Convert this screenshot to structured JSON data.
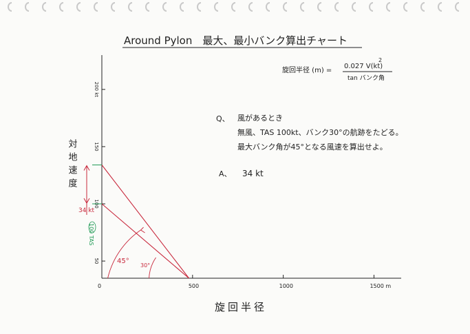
{
  "title": "Around Pylon　最大、最小バンク算出チャート",
  "formula": {
    "lhs": "旋回半径 (m) =",
    "numerator": "0.027 V(kt)",
    "exponent": "2",
    "denominator": "tan バンク角"
  },
  "question": {
    "label": "Q、",
    "lines": [
      "風があるとき",
      "無風、TAS 100kt、バンク30°の航跡をたどる。",
      "最大バンク角が45°となる風速を算出せよ。"
    ]
  },
  "answer": {
    "label": "A、",
    "value": "34 kt"
  },
  "colors": {
    "ink": "#222222",
    "red": "#c8283c",
    "green": "#1f9a55",
    "binder": "#c9c9c9"
  },
  "chart_data": {
    "type": "line",
    "title": "Around Pylon　最大、最小バンク算出チャート",
    "xlabel": "旋回半径",
    "ylabel": "対地速度",
    "xlim": [
      0,
      1650
    ],
    "ylim": [
      35,
      230
    ],
    "x_ticks": [
      {
        "value": 0,
        "label": "0"
      },
      {
        "value": 500,
        "label": "500"
      },
      {
        "value": 1000,
        "label": "1000"
      },
      {
        "value": 1500,
        "label": "1500 m"
      }
    ],
    "y_ticks": [
      {
        "value": 50,
        "label": "50"
      },
      {
        "value": 100,
        "label": "100"
      },
      {
        "value": 150,
        "label": "150"
      },
      {
        "value": 200,
        "label": "200 kt"
      }
    ],
    "series": [
      {
        "name": "30°",
        "color": "#c8283c",
        "points": [
          [
            0,
            100
          ],
          [
            480,
            35
          ]
        ]
      },
      {
        "name": "45°",
        "color": "#c8283c",
        "points": [
          [
            0,
            134
          ],
          [
            480,
            35
          ]
        ]
      }
    ],
    "markers": [
      {
        "text": "100 TAS",
        "y": 100,
        "color": "#1f9a55"
      },
      {
        "text": "34 kt",
        "from": 100,
        "to": 134,
        "color": "#c8283c"
      }
    ],
    "angle_labels": [
      {
        "text": "45°",
        "color": "#c8283c"
      },
      {
        "text": "30°",
        "color": "#c8283c"
      }
    ]
  }
}
